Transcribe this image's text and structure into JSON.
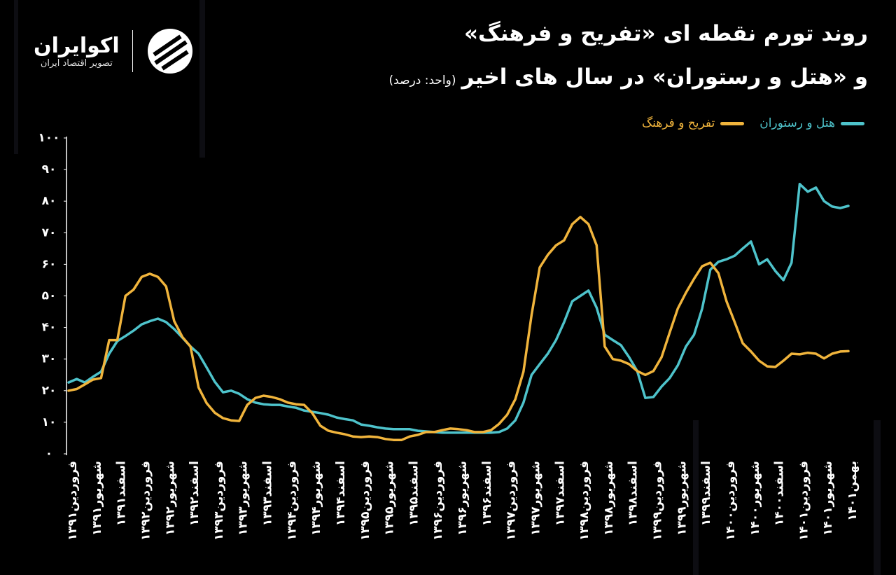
{
  "logo": {
    "name": "اکوایران",
    "tagline": "تصویر اقتصاد ایران"
  },
  "chart_data": {
    "type": "line",
    "title": "روند تورم نقطه ای «تفریح و فرهنگ»",
    "subtitle": "و «هتل و رستوران» در سال های اخیر",
    "unit_note": "(واحد: درصد)",
    "categories": [
      "فروردین۱۳۹۱",
      null,
      null,
      "شهریور۱۳۹۱",
      null,
      null,
      "اسفند۱۳۹۱",
      null,
      null,
      "فروردین۱۳۹۲",
      null,
      null,
      "شهریور۱۳۹۲",
      null,
      null,
      "اسفند۱۳۹۲",
      null,
      null,
      "فروردین۱۳۹۳",
      null,
      null,
      "شهریور۱۳۹۳",
      null,
      null,
      "اسفند۱۳۹۳",
      null,
      null,
      "فروردین۱۳۹۴",
      null,
      null,
      "شهریور۱۳۹۴",
      null,
      null,
      "اسفند۱۳۹۴",
      null,
      null,
      "فروردین۱۳۹۵",
      null,
      null,
      "شهریور۱۳۹۵",
      null,
      null,
      "اسفند۱۳۹۵",
      null,
      null,
      "فروردین۱۳۹۶",
      null,
      null,
      "شهریور۱۳۹۶",
      null,
      null,
      "اسفند۱۳۹۶",
      null,
      null,
      "فروردین۱۳۹۷",
      null,
      null,
      "شهریور۱۳۹۷",
      null,
      null,
      "اسفند۱۳۹۷",
      null,
      null,
      "فروردین۱۳۹۸",
      null,
      null,
      "شهریور۱۳۹۸",
      null,
      null,
      "اسفند۱۳۹۸",
      null,
      null,
      "فروردین۱۳۹۹",
      null,
      null,
      "شهریور۱۳۹۹",
      null,
      null,
      "اسفند۱۳۹۹",
      null,
      null,
      "فروردین۱۴۰۰",
      null,
      null,
      "شهریور۱۴۰۰",
      null,
      null,
      "اسفند۱۴۰۰",
      null,
      null,
      "فروردین۱۴۰۱",
      null,
      null,
      "شهریور۱۴۰۱",
      null,
      null,
      "بهمن۱۴۰۱"
    ],
    "series": [
      {
        "name": "هتل و رستوران",
        "color": "#4ec3cb",
        "values": [
          22.6,
          23.7,
          22.6,
          24.4,
          26,
          31.7,
          35.7,
          37.3,
          39,
          41,
          42,
          42.8,
          41.7,
          39.5,
          36.8,
          34,
          31.7,
          27.3,
          22.8,
          19.5,
          20,
          19,
          17.3,
          16.2,
          15.7,
          15.5,
          15.5,
          15,
          14.6,
          13.7,
          13.3,
          12.9,
          12.4,
          11.5,
          11,
          10.6,
          9.3,
          8.9,
          8.4,
          8,
          7.8,
          7.8,
          7.8,
          7.3,
          7.1,
          6.9,
          6.7,
          6.7,
          6.7,
          6.7,
          6.7,
          6.7,
          6.7,
          6.9,
          8,
          10.6,
          16.2,
          25,
          28.4,
          31.7,
          36,
          41.7,
          48.3,
          50,
          51.7,
          46.3,
          37.7,
          36,
          34.4,
          30.6,
          26.2,
          17.7,
          18,
          21.3,
          24,
          28,
          34,
          37.7,
          46,
          58.3,
          60.8,
          61.6,
          62.7,
          65,
          67.2,
          60,
          61.6,
          57.9,
          55,
          60.5,
          85.4,
          83,
          84.3,
          80,
          78.3,
          77.8,
          78.5
        ]
      },
      {
        "name": "تفریح و فرهنگ",
        "color": "#f0b43c",
        "values": [
          20,
          20.5,
          22,
          23.5,
          24,
          36,
          36,
          50,
          52,
          56,
          57,
          56,
          53,
          42,
          37,
          34,
          21,
          16,
          13,
          11.3,
          10.6,
          10.4,
          15.5,
          17.7,
          18.4,
          18,
          17.3,
          16.2,
          15.7,
          15.5,
          12.9,
          8.9,
          7.3,
          6.7,
          6.2,
          5.5,
          5.3,
          5.5,
          5.3,
          4.7,
          4.4,
          4.4,
          5.5,
          6,
          6.9,
          6.9,
          7.5,
          8,
          7.8,
          7.5,
          6.9,
          6.9,
          7.5,
          9.5,
          12.4,
          17.3,
          26,
          44,
          59,
          63,
          66,
          67.6,
          72.7,
          75,
          72.7,
          66,
          34,
          30,
          29.5,
          28.4,
          26.2,
          25,
          26.2,
          30.6,
          38.4,
          46,
          51,
          55.4,
          59.4,
          60.5,
          57.2,
          48.3,
          41.7,
          35,
          32.4,
          29.5,
          27.7,
          27.5,
          29.5,
          31.7,
          31.5,
          32,
          31.7,
          30.2,
          31.7,
          32.4,
          32.5
        ]
      }
    ],
    "ylim": [
      0,
      100
    ],
    "yticks": [
      {
        "value": 0,
        "label": "۰"
      },
      {
        "value": 10,
        "label": "۱۰"
      },
      {
        "value": 20,
        "label": "۲۰"
      },
      {
        "value": 30,
        "label": "۳۰"
      },
      {
        "value": 40,
        "label": "۴۰"
      },
      {
        "value": 50,
        "label": "۵۰"
      },
      {
        "value": 60,
        "label": "۶۰"
      },
      {
        "value": 70,
        "label": "۷۰"
      },
      {
        "value": 80,
        "label": "۸۰"
      },
      {
        "value": 90,
        "label": "۹۰"
      },
      {
        "value": 100,
        "label": "۱۰۰"
      }
    ],
    "grid": false
  }
}
